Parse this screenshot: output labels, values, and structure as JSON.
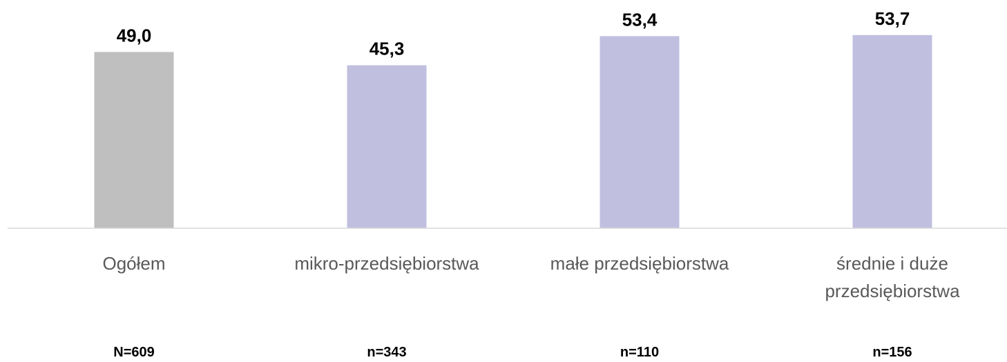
{
  "chart_data": {
    "type": "bar",
    "categories": [
      "Ogółem",
      "mikro-przedsiębiorstwa",
      "małe przedsiębiorstwa",
      "średnie i duże przedsiębiorstwa"
    ],
    "values": [
      49.0,
      45.3,
      53.4,
      53.7
    ],
    "value_labels": [
      "49,0",
      "45,3",
      "53,4",
      "53,7"
    ],
    "colors": [
      "#bfbfbf",
      "#c0bfdf",
      "#c0bfdf",
      "#c0bfdf"
    ],
    "sample_sizes": [
      "N=609",
      "n=343",
      "n=110",
      "n=156"
    ],
    "ylim": [
      0,
      60
    ]
  }
}
